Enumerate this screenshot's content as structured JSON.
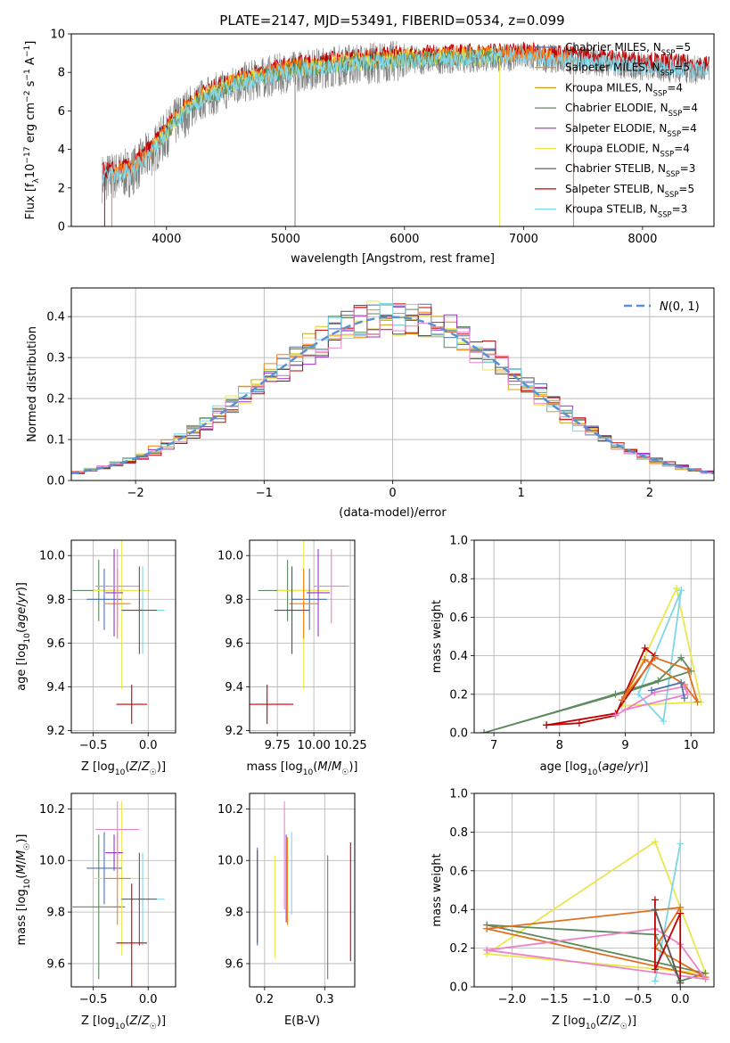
{
  "figure": {
    "title": "PLATE=2147, MJD=53491, FIBERID=0534, z=0.099"
  },
  "colors": {
    "Chabrier MILES": "#4c72b0",
    "Salpeter MILES": "#ff7f0e",
    "Kroupa MILES": "#d4a017",
    "Chabrier ELODIE": "#5e8a5e",
    "Salpeter ELODIE": "#9b30c8",
    "Kroupa ELODIE": "#e8e84a",
    "Chabrier STELIB": "#555555",
    "Salpeter STELIB": "#c00000",
    "Kroupa STELIB": "#7fd6e8",
    "gaussian": "#5b8fd6",
    "extra_pink": "#ee82c8",
    "extra_orange": "#e07020"
  },
  "chart_data": [
    {
      "id": "spectrum",
      "type": "line",
      "xlabel": "wavelength [Angstrom, rest frame]",
      "ylabel": "Flux [f_λ10^-17 erg cm^-2 s^-1 A^-1]",
      "xlim": [
        3200,
        8600
      ],
      "ylim": [
        0,
        10
      ],
      "xticks": [
        4000,
        5000,
        6000,
        7000,
        8000
      ],
      "yticks": [
        0,
        2,
        4,
        6,
        8,
        10
      ],
      "legend_position": "upper-right",
      "legend": [
        {
          "name": "Chabrier MILES",
          "nssp": "5"
        },
        {
          "name": "Salpeter MILES",
          "nssp": "5"
        },
        {
          "name": "Kroupa MILES",
          "nssp": "4"
        },
        {
          "name": "Chabrier ELODIE",
          "nssp": "4"
        },
        {
          "name": "Salpeter ELODIE",
          "nssp": "4"
        },
        {
          "name": "Kroupa ELODIE",
          "nssp": "4"
        },
        {
          "name": "Chabrier STELIB",
          "nssp": "3"
        },
        {
          "name": "Salpeter STELIB",
          "nssp": "5"
        },
        {
          "name": "Kroupa STELIB",
          "nssp": "3"
        }
      ],
      "continuum": {
        "x": [
          3450,
          3700,
          3900,
          4100,
          4300,
          4600,
          5000,
          5500,
          6000,
          6500,
          7000,
          7500,
          8000,
          8500
        ],
        "y": [
          2.5,
          2.8,
          4.0,
          5.6,
          6.6,
          7.4,
          8.0,
          8.4,
          8.6,
          8.7,
          8.8,
          8.6,
          8.3,
          8.1
        ]
      }
    },
    {
      "id": "residuals",
      "type": "histogram",
      "xlabel": "(data-model)/error",
      "ylabel": "Normed distribution",
      "xlim": [
        -2.5,
        2.5
      ],
      "ylim": [
        0,
        0.47
      ],
      "xticks": [
        -2,
        -1,
        0,
        1,
        2
      ],
      "yticks": [
        0.0,
        0.1,
        0.2,
        0.3,
        0.4
      ],
      "legend": "N(0,1)",
      "bin_width": 0.1
    },
    {
      "id": "age_vs_Z",
      "type": "errorbar",
      "xlabel": "Z [log10(Z/Z☉)]",
      "ylabel": "age  [log10(age/yr)]",
      "xlim": [
        -0.7,
        0.25
      ],
      "ylim": [
        9.19,
        10.07
      ],
      "xticks": [
        -0.5,
        0.0
      ],
      "yticks": [
        9.2,
        9.4,
        9.6,
        9.8,
        10.0
      ],
      "points": [
        {
          "c": "Chabrier ELODIE",
          "x": -0.45,
          "xerr": 0.24,
          "y": 9.84,
          "yerr": 0.14
        },
        {
          "c": "Kroupa ELODIE",
          "x": -0.24,
          "xerr": 0.26,
          "y": 9.84,
          "yerr": 0.45
        },
        {
          "c": "Chabrier MILES",
          "x": -0.4,
          "xerr": 0.16,
          "y": 9.8,
          "yerr": 0.14
        },
        {
          "c": "Salpeter MILES",
          "x": -0.28,
          "xerr": 0.12,
          "y": 9.78,
          "yerr": 0.16
        },
        {
          "c": "Salpeter ELODIE",
          "x": -0.31,
          "xerr": 0.08,
          "y": 9.83,
          "yerr": 0.2
        },
        {
          "c": "extra_pink",
          "x": -0.28,
          "xerr": 0.2,
          "y": 9.86,
          "yerr": 0.17
        },
        {
          "c": "Kroupa STELIB",
          "x": -0.05,
          "xerr": 0.2,
          "y": 9.75,
          "yerr": 0.2
        },
        {
          "c": "Chabrier STELIB",
          "x": -0.08,
          "xerr": 0.16,
          "y": 9.75,
          "yerr": 0.2
        },
        {
          "c": "Salpeter STELIB",
          "x": -0.15,
          "xerr": 0.14,
          "y": 9.32,
          "yerr": 0.09
        }
      ]
    },
    {
      "id": "age_vs_mass",
      "type": "errorbar",
      "xlabel": "mass [log10(M/M☉)]",
      "ylabel": "",
      "xlim": [
        9.56,
        10.28
      ],
      "ylim": [
        9.19,
        10.07
      ],
      "xticks": [
        9.75,
        10.0,
        10.25
      ],
      "yticks": [
        9.2,
        9.4,
        9.6,
        9.8,
        10.0
      ],
      "points": [
        {
          "c": "Chabrier ELODIE",
          "x": 9.82,
          "xerr": 0.2,
          "y": 9.84,
          "yerr": 0.14
        },
        {
          "c": "Kroupa ELODIE",
          "x": 9.93,
          "xerr": 0.18,
          "y": 9.84,
          "yerr": 0.45
        },
        {
          "c": "Chabrier MILES",
          "x": 9.97,
          "xerr": 0.12,
          "y": 9.8,
          "yerr": 0.14
        },
        {
          "c": "Salpeter MILES",
          "x": 9.93,
          "xerr": 0.1,
          "y": 9.78,
          "yerr": 0.16
        },
        {
          "c": "Salpeter ELODIE",
          "x": 10.03,
          "xerr": 0.08,
          "y": 9.83,
          "yerr": 0.2
        },
        {
          "c": "extra_pink",
          "x": 10.12,
          "xerr": 0.12,
          "y": 9.86,
          "yerr": 0.17
        },
        {
          "c": "Kroupa STELIB",
          "x": 9.85,
          "xerr": 0.12,
          "y": 9.75,
          "yerr": 0.2
        },
        {
          "c": "Chabrier STELIB",
          "x": 9.85,
          "xerr": 0.12,
          "y": 9.75,
          "yerr": 0.2
        },
        {
          "c": "Salpeter STELIB",
          "x": 9.68,
          "xerr": 0.18,
          "y": 9.32,
          "yerr": 0.09
        }
      ]
    },
    {
      "id": "massweight_vs_age",
      "type": "line",
      "xlabel": "age  [log10(age/yr)]",
      "ylabel": "mass weight",
      "xlim": [
        6.7,
        10.35
      ],
      "ylim": [
        0,
        1.0
      ],
      "xticks": [
        7,
        8,
        9,
        10
      ],
      "yticks": [
        0.0,
        0.2,
        0.4,
        0.6,
        0.8,
        1.0
      ],
      "series": [
        {
          "c": "Kroupa ELODIE",
          "x": [
            9.78,
            10.15,
            8.95,
            9.78
          ],
          "y": [
            0.75,
            0.16,
            0.14,
            0.75
          ]
        },
        {
          "c": "Kroupa STELIB",
          "x": [
            9.85,
            9.58,
            9.2,
            9.85
          ],
          "y": [
            0.74,
            0.06,
            0.2,
            0.74
          ]
        },
        {
          "c": "Chabrier ELODIE",
          "x": [
            6.85,
            8.85,
            9.5,
            9.85,
            10.0,
            9.0,
            6.85
          ],
          "y": [
            0.0,
            0.2,
            0.27,
            0.39,
            0.32,
            0.21,
            0.0
          ]
        },
        {
          "c": "Salpeter STELIB",
          "x": [
            7.8,
            8.3,
            8.85,
            9.3,
            9.45,
            8.85,
            7.8
          ],
          "y": [
            0.04,
            0.05,
            0.09,
            0.44,
            0.4,
            0.1,
            0.04
          ]
        },
        {
          "c": "extra_orange",
          "x": [
            8.95,
            9.45,
            9.95,
            10.1,
            9.9,
            9.3,
            8.95
          ],
          "y": [
            0.17,
            0.39,
            0.33,
            0.16,
            0.25,
            0.38,
            0.17
          ]
        },
        {
          "c": "extra_pink",
          "x": [
            8.85,
            9.45,
            9.9,
            9.95,
            9.0,
            8.85
          ],
          "y": [
            0.09,
            0.21,
            0.24,
            0.2,
            0.12,
            0.09
          ]
        },
        {
          "c": "Chabrier MILES",
          "x": [
            9.4,
            9.85,
            9.9
          ],
          "y": [
            0.22,
            0.26,
            0.18
          ]
        }
      ]
    },
    {
      "id": "mass_vs_Z",
      "type": "errorbar",
      "xlabel": "Z [log10(Z/Z☉)]",
      "ylabel": "mass [log10(M/M☉)]",
      "xlim": [
        -0.7,
        0.25
      ],
      "ylim": [
        9.51,
        10.26
      ],
      "xticks": [
        -0.5,
        0.0
      ],
      "yticks": [
        9.6,
        9.8,
        10.0,
        10.2
      ],
      "points": [
        {
          "c": "Chabrier ELODIE",
          "x": -0.45,
          "xerr": 0.24,
          "y": 9.82,
          "yerr": 0.28
        },
        {
          "c": "Kroupa ELODIE",
          "x": -0.24,
          "xerr": 0.26,
          "y": 9.93,
          "yerr": 0.3
        },
        {
          "c": "Chabrier MILES",
          "x": -0.4,
          "xerr": 0.16,
          "y": 9.97,
          "yerr": 0.14
        },
        {
          "c": "Salpeter MILES",
          "x": -0.28,
          "xerr": 0.12,
          "y": 9.93,
          "yerr": 0.18
        },
        {
          "c": "Salpeter ELODIE",
          "x": -0.31,
          "xerr": 0.08,
          "y": 10.03,
          "yerr": 0.07
        },
        {
          "c": "extra_pink",
          "x": -0.28,
          "xerr": 0.2,
          "y": 10.12,
          "yerr": 0.11
        },
        {
          "c": "Kroupa STELIB",
          "x": -0.05,
          "xerr": 0.2,
          "y": 9.85,
          "yerr": 0.18
        },
        {
          "c": "Chabrier STELIB",
          "x": -0.08,
          "xerr": 0.16,
          "y": 9.85,
          "yerr": 0.18
        },
        {
          "c": "Salpeter STELIB",
          "x": -0.15,
          "xerr": 0.14,
          "y": 9.68,
          "yerr": 0.23
        }
      ]
    },
    {
      "id": "mass_vs_ebv",
      "type": "errorbar",
      "xlabel": "E(B-V)",
      "ylabel": "",
      "xlim": [
        0.175,
        0.35
      ],
      "ylim": [
        9.51,
        10.26
      ],
      "xticks": [
        0.2,
        0.3
      ],
      "yticks": [
        9.6,
        9.8,
        10.0,
        10.2
      ],
      "points": [
        {
          "c": "Chabrier ELODIE",
          "x": 0.305,
          "y": 9.78,
          "yerr": 0.24
        },
        {
          "c": "Kroupa ELODIE",
          "x": 0.217,
          "y": 9.82,
          "yerr": 0.2
        },
        {
          "c": "Chabrier MILES",
          "x": 0.188,
          "y": 9.86,
          "yerr": 0.19
        },
        {
          "c": "Salpeter MILES",
          "x": 0.238,
          "y": 9.92,
          "yerr": 0.17
        },
        {
          "c": "Salpeter ELODIE",
          "x": 0.236,
          "y": 9.93,
          "yerr": 0.17
        },
        {
          "c": "extra_pink",
          "x": 0.233,
          "y": 10.02,
          "yerr": 0.21
        },
        {
          "c": "Kroupa STELIB",
          "x": 0.245,
          "y": 9.95,
          "yerr": 0.16
        },
        {
          "c": "Chabrier STELIB",
          "x": 0.188,
          "y": 9.86,
          "yerr": 0.18
        },
        {
          "c": "Salpeter STELIB",
          "x": 0.343,
          "y": 9.84,
          "yerr": 0.23
        }
      ]
    },
    {
      "id": "massweight_vs_Z",
      "type": "line",
      "xlabel": "Z [log10(Z/Z☉)]",
      "ylabel": "mass weight",
      "xlim": [
        -2.45,
        0.4
      ],
      "ylim": [
        0,
        1.0
      ],
      "xticks": [
        -2.0,
        -1.5,
        -1.0,
        -0.5,
        0.0
      ],
      "yticks": [
        0.0,
        0.2,
        0.4,
        0.6,
        0.8,
        1.0
      ],
      "series": [
        {
          "c": "Kroupa ELODIE",
          "x": [
            -2.3,
            -0.3,
            0.3,
            -2.3
          ],
          "y": [
            0.17,
            0.75,
            0.07,
            0.17
          ]
        },
        {
          "c": "Kroupa STELIB",
          "x": [
            -0.3,
            0.0,
            -0.3
          ],
          "y": [
            0.03,
            0.74,
            0.03
          ]
        },
        {
          "c": "Chabrier ELODIE",
          "x": [
            -2.3,
            -0.3,
            0.0,
            0.3,
            -2.3
          ],
          "y": [
            0.32,
            0.27,
            0.03,
            0.07,
            0.32
          ]
        },
        {
          "c": "extra_orange",
          "x": [
            -2.3,
            0.0,
            -0.3,
            0.3,
            -2.3
          ],
          "y": [
            0.3,
            0.41,
            0.2,
            0.05,
            0.3
          ]
        },
        {
          "c": "extra_pink",
          "x": [
            -2.3,
            -0.3,
            0.0,
            0.3,
            -2.3
          ],
          "y": [
            0.19,
            0.3,
            0.22,
            0.04,
            0.19
          ]
        },
        {
          "c": "Salpeter STELIB",
          "x": [
            -0.3,
            -0.3,
            0.0,
            0.0
          ],
          "y": [
            0.45,
            0.09,
            0.38,
            0.02
          ]
        },
        {
          "c": "Chabrier STELIB",
          "x": [
            -0.3,
            0.0
          ],
          "y": [
            0.4,
            0.02
          ]
        }
      ]
    }
  ]
}
